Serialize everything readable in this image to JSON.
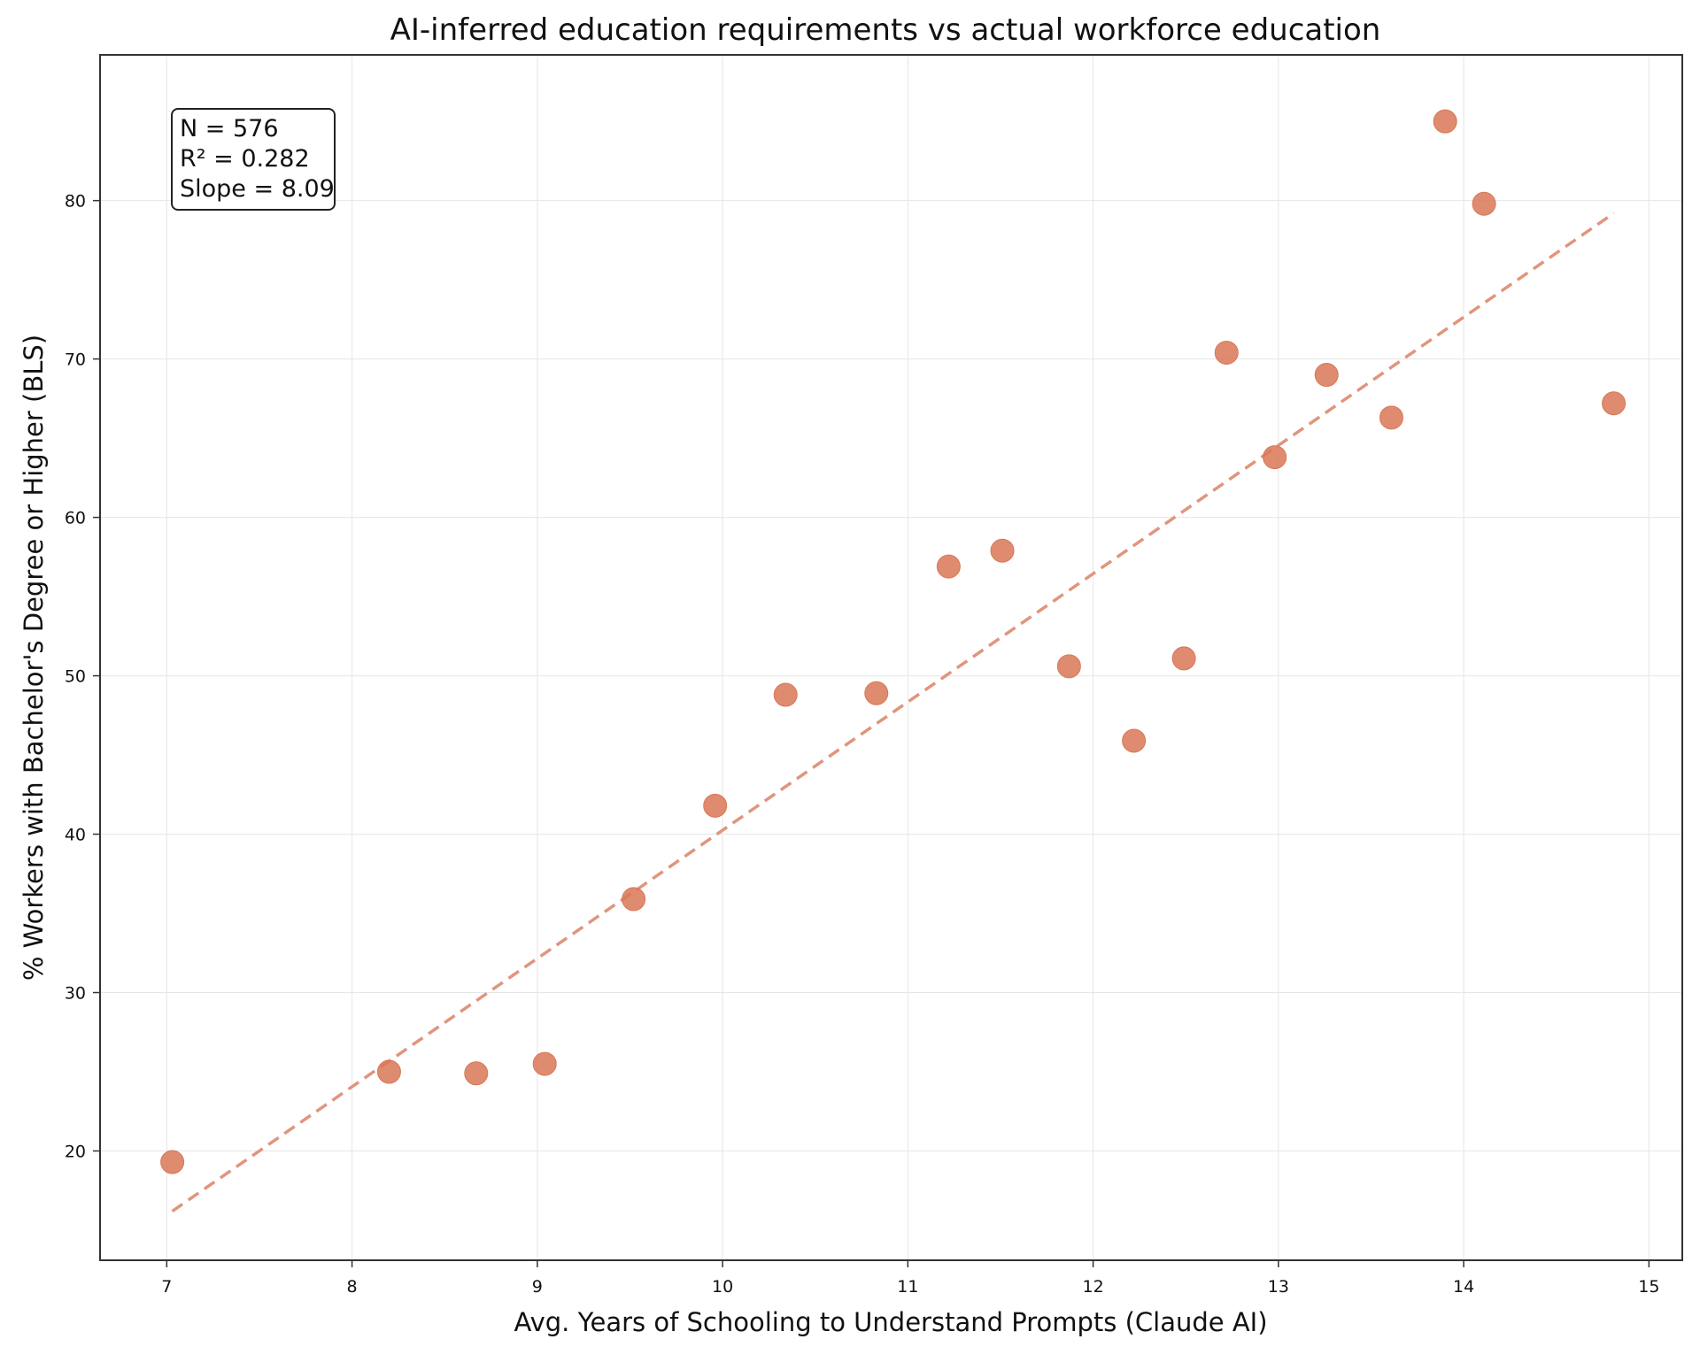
{
  "chart_data": {
    "type": "scatter",
    "title": "AI-inferred education requirements vs actual workforce education",
    "xlabel": "Avg. Years of Schooling to Understand Prompts (Claude AI)",
    "ylabel": "% Workers with Bachelor's Degree or Higher (BLS)",
    "xlim": [
      6.64,
      15.18
    ],
    "ylim": [
      13.1,
      89.2
    ],
    "xticks": [
      7,
      8,
      9,
      10,
      11,
      12,
      13,
      14,
      15
    ],
    "yticks": [
      20,
      30,
      40,
      50,
      60,
      70,
      80
    ],
    "grid": true,
    "marker_color": "#d97757",
    "trendline_color": "#e0957c",
    "series": [
      {
        "points": [
          {
            "x": 7.03,
            "y": 19.3
          },
          {
            "x": 8.2,
            "y": 25.0
          },
          {
            "x": 8.67,
            "y": 24.9
          },
          {
            "x": 9.04,
            "y": 25.5
          },
          {
            "x": 9.52,
            "y": 35.9
          },
          {
            "x": 9.96,
            "y": 41.8
          },
          {
            "x": 10.34,
            "y": 48.8
          },
          {
            "x": 10.83,
            "y": 48.9
          },
          {
            "x": 11.22,
            "y": 56.9
          },
          {
            "x": 11.51,
            "y": 57.9
          },
          {
            "x": 11.87,
            "y": 50.6
          },
          {
            "x": 12.22,
            "y": 45.9
          },
          {
            "x": 12.49,
            "y": 51.1
          },
          {
            "x": 12.72,
            "y": 70.4
          },
          {
            "x": 12.98,
            "y": 63.8
          },
          {
            "x": 13.26,
            "y": 69.0
          },
          {
            "x": 13.61,
            "y": 66.3
          },
          {
            "x": 13.9,
            "y": 85.0
          },
          {
            "x": 14.11,
            "y": 79.8
          },
          {
            "x": 14.81,
            "y": 67.2
          }
        ]
      }
    ],
    "trendline": {
      "style": "dashed",
      "x": [
        7.03,
        14.81
      ],
      "y": [
        16.2,
        79.2
      ]
    },
    "stats_box": {
      "placement": "top-left",
      "lines": [
        "N = 576",
        "R² = 0.282",
        "Slope = 8.09"
      ]
    }
  }
}
